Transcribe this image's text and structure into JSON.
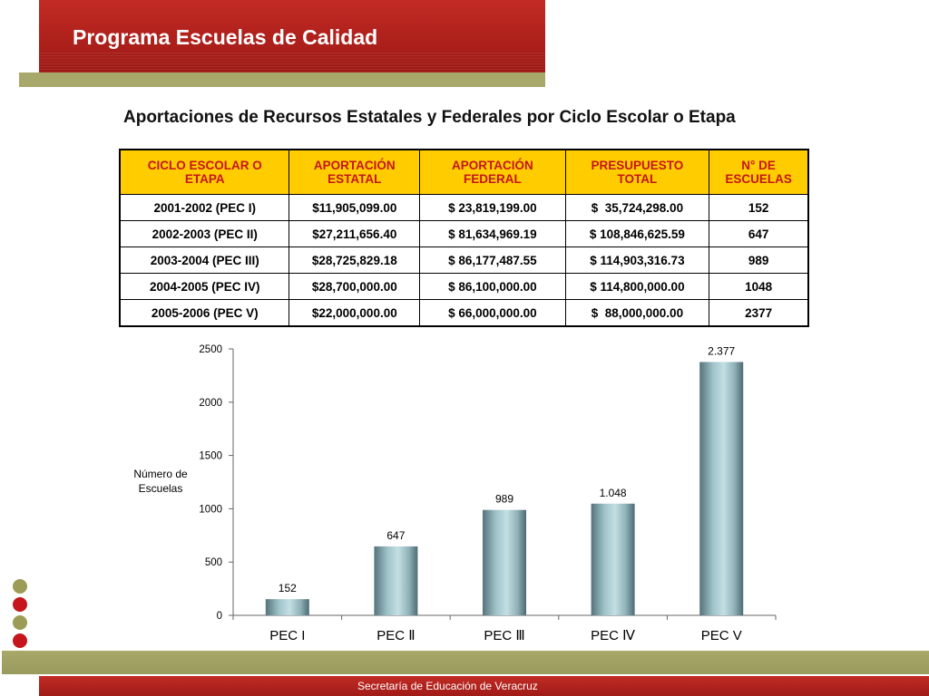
{
  "header": {
    "title": "Programa Escuelas de Calidad"
  },
  "subtitle": "Aportaciones de Recursos Estatales y Federales por Ciclo Escolar o Etapa",
  "table": {
    "headers": [
      [
        "CICLO ESCOLAR O",
        "ETAPA"
      ],
      [
        "APORTACIÓN",
        "ESTATAL"
      ],
      [
        "APORTACIÓN",
        "FEDERAL"
      ],
      [
        "PRESUPUESTO",
        "TOTAL"
      ],
      [
        "N° DE",
        "ESCUELAS"
      ]
    ],
    "rows": [
      [
        "2001-2002 (PEC I)",
        "$11,905,099.00",
        "$ 23,819,199.00",
        "$  35,724,298.00",
        "152"
      ],
      [
        "2002-2003 (PEC II)",
        "$27,211,656.40",
        "$ 81,634,969.19",
        "$ 108,846,625.59",
        "647"
      ],
      [
        "2003-2004 (PEC III)",
        "$28,725,829.18",
        "$ 86,177,487.55",
        "$ 114,903,316.73",
        "989"
      ],
      [
        "2004-2005 (PEC IV)",
        "$28,700,000.00",
        "$ 86,100,000.00",
        "$ 114,800,000.00",
        "1048"
      ],
      [
        "2005-2006 (PEC V)",
        "$22,000,000.00",
        "$ 66,000,000.00",
        "$  88,000,000.00",
        "2377"
      ]
    ]
  },
  "chart_data": {
    "type": "bar",
    "categories": [
      "PEC I",
      "PEC Ⅱ",
      "PEC Ⅲ",
      "PEC Ⅳ",
      "PEC V"
    ],
    "values": [
      152,
      647,
      989,
      1048,
      2377
    ],
    "data_labels": [
      "152",
      "647",
      "989",
      "1.048",
      "2.377"
    ],
    "title": "",
    "xlabel": "",
    "ylabel": [
      "Número de",
      "Escuelas"
    ],
    "ylim": [
      0,
      2500
    ],
    "yticks": [
      0,
      500,
      1000,
      1500,
      2000,
      2500
    ],
    "grid": false,
    "legend": "none"
  },
  "decor": {
    "dots": [
      "#9c9b57",
      "#c4161c",
      "#9c9b57",
      "#c4161c"
    ]
  },
  "footer": {
    "text": "Secretaría de Educación de Veracruz"
  }
}
